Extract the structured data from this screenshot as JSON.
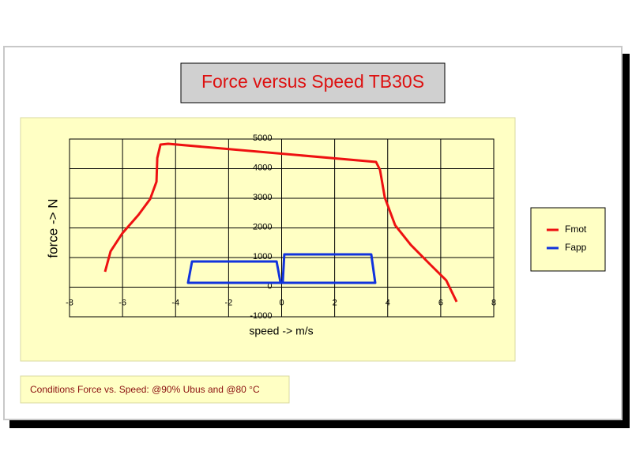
{
  "chart_data": {
    "type": "line",
    "title": "Force versus Speed TB30S",
    "x_label": "speed -> m/s",
    "y_label": "force -> N",
    "footnote": "Conditions Force vs. Speed: @90% Ubus and @80 °C",
    "xlim": [
      -8,
      8
    ],
    "xticks": [
      -8,
      -6,
      -4,
      -2,
      0,
      2,
      4,
      6,
      8
    ],
    "ylim": [
      -1000,
      5000
    ],
    "yticks": [
      -1000,
      0,
      1000,
      2000,
      3000,
      4000,
      5000
    ],
    "grid": true,
    "legend": "right",
    "series": [
      {
        "name": "Fmot",
        "color": "#ee1111",
        "x": [
          -6.66,
          -6.45,
          -6.0,
          -5.4,
          -4.96,
          -4.72,
          -4.69,
          -4.57,
          -4.28,
          3.56,
          3.71,
          3.89,
          4.28,
          4.87,
          5.61,
          6.21,
          6.6
        ],
        "values": [
          520,
          1213,
          1827,
          2440,
          2973,
          3560,
          4360,
          4813,
          4840,
          4227,
          3960,
          3027,
          2093,
          1427,
          760,
          227,
          -493
        ]
      },
      {
        "name": "Fapp",
        "color": "#1133dd",
        "x": [
          -0.04,
          -0.19,
          -3.38,
          -3.53,
          3.53,
          3.38,
          0.1,
          0.04
        ],
        "values": [
          147,
          867,
          867,
          147,
          147,
          1107,
          1107,
          147
        ]
      }
    ]
  }
}
